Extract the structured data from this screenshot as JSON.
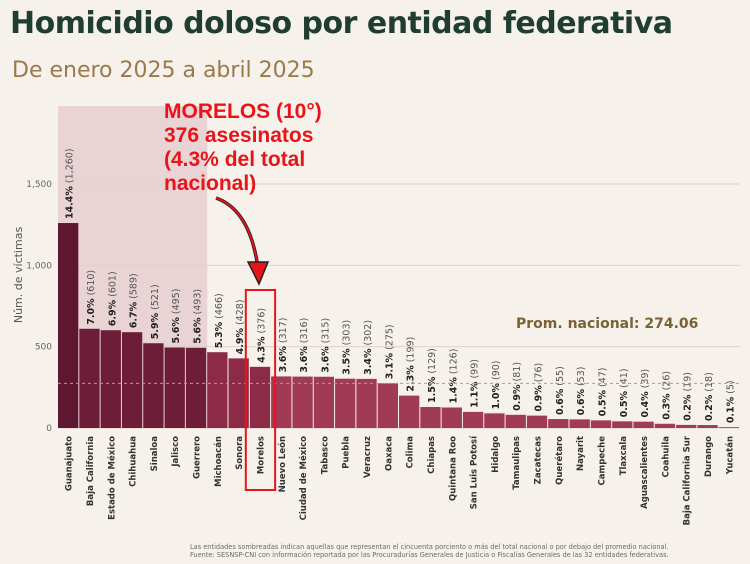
{
  "title": "Homicidio doloso por entidad federativa",
  "subtitle": "De enero 2025 a abril 2025",
  "callout": {
    "line1": "MORELOS (10°)",
    "line2": "376 asesinatos",
    "line3": "(4.3% del total",
    "line4": "nacional)"
  },
  "average_label": "Prom. nacional: 274.06",
  "footnote": {
    "line1": "Las entidades sombreadas indican aquellas que representan el cincuenta porciento o más del total nacional o por debajo del promedio nacional.",
    "line2": "Fuente: SESNSP-CNI con información reportada por las Procuradurías Generales de Justicia o Fiscalías Generales de las 32 entidades federativas."
  },
  "colors": {
    "bar_dark": "#5e1730",
    "bar_mid": "#8c2a48",
    "bar_light": "#a13a57",
    "shade": "#e9d3d4",
    "highlight": "#e8141a",
    "average": "#7a6235",
    "title": "#1f3d30"
  },
  "chart_data": {
    "type": "bar",
    "ylabel": "Núm. de víctimas",
    "ylim": [
      0,
      1500
    ],
    "yticks": [
      "0",
      "500",
      "1,000",
      "1,500"
    ],
    "average": 274.06,
    "highlight": "Morelos",
    "shaded_group_size": 7,
    "categories": [
      "Guanajuato",
      "Baja California",
      "Estado de México",
      "Chihuahua",
      "Sinaloa",
      "Jalisco",
      "Guerrero",
      "Michoacán",
      "Sonora",
      "Morelos",
      "Nuevo León",
      "Ciudad de México",
      "Tabasco",
      "Puebla",
      "Veracruz",
      "Oaxaca",
      "Colima",
      "Chiapas",
      "Quintana Roo",
      "San Luis Potosí",
      "Hidalgo",
      "Tamaulipas",
      "Zacatecas",
      "Querétaro",
      "Nayarit",
      "Campeche",
      "Tlaxcala",
      "Aguascalientes",
      "Coahuila",
      "Baja California Sur",
      "Durango",
      "Yucatán"
    ],
    "values": [
      1260,
      610,
      601,
      589,
      521,
      495,
      493,
      466,
      428,
      376,
      317,
      316,
      315,
      303,
      302,
      275,
      199,
      129,
      126,
      99,
      90,
      81,
      76,
      55,
      53,
      47,
      41,
      39,
      26,
      19,
      18,
      5
    ],
    "pct_labels": [
      "14.4%",
      "7.0%",
      "6.9%",
      "6.7%",
      "5.9%",
      "5.6%",
      "5.6%",
      "5.3%",
      "4.9%",
      "4.3%",
      "3.6%",
      "3.6%",
      "3.6%",
      "3.5%",
      "3.4%",
      "3.1%",
      "2.3%",
      "1.5%",
      "1.4%",
      "1.1%",
      "1.0%",
      "0.9%",
      "0.9%",
      "0.6%",
      "0.6%",
      "0.5%",
      "0.5%",
      "0.4%",
      "0.3%",
      "0.2%",
      "0.2%",
      "0.1%"
    ],
    "value_labels": [
      "(1,260)",
      "(610)",
      "(601)",
      "(589)",
      "(521)",
      "(495)",
      "(493)",
      "(466)",
      "(428)",
      "(376)",
      "(317)",
      "(316)",
      "(315)",
      "(303)",
      "(302)",
      "(275)",
      "(199)",
      "(129)",
      "(126)",
      "(99)",
      "(90)",
      "(81)",
      "(76)",
      "(55)",
      "(53)",
      "(47)",
      "(41)",
      "(39)",
      "(26)",
      "(19)",
      "(18)",
      "(5)"
    ]
  }
}
